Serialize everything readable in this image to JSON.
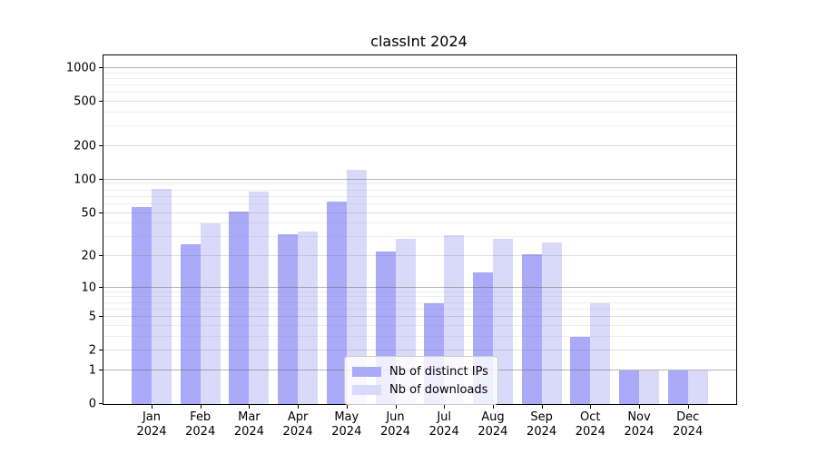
{
  "title": "classInt 2024",
  "chart_data": {
    "type": "bar",
    "title": "classInt 2024",
    "xlabel": "",
    "ylabel": "",
    "scale": "log1p",
    "ylim": [
      0,
      1300
    ],
    "grid": "on",
    "legend_position": "lower-center-inside",
    "categories": [
      "Jan",
      "Feb",
      "Mar",
      "Apr",
      "May",
      "Jun",
      "Jul",
      "Aug",
      "Sep",
      "Oct",
      "Nov",
      "Dec"
    ],
    "x_year_line": "2024",
    "series": [
      {
        "name": "Nb of distinct IPs",
        "color": "#aaaaf8",
        "values": [
          57,
          26,
          51,
          32,
          64,
          22,
          7,
          14,
          21,
          3,
          1,
          1
        ]
      },
      {
        "name": "Nb of downloads",
        "color": "#d9d9fa",
        "values": [
          83,
          40,
          78,
          34,
          122,
          29,
          31,
          29,
          27,
          7,
          1,
          1
        ]
      }
    ],
    "y_ticks": [
      0,
      1,
      2,
      5,
      10,
      20,
      50,
      100,
      200,
      500,
      1000
    ],
    "gridlines_major": [
      1,
      10,
      100,
      1000
    ],
    "gridlines_mid": [
      2,
      5,
      20,
      50,
      200,
      500
    ],
    "gridlines_minor": [
      3,
      4,
      6,
      7,
      8,
      9,
      30,
      40,
      60,
      70,
      80,
      90,
      300,
      400,
      600,
      700,
      800,
      900
    ]
  },
  "colors": {
    "ips_bar": "#aaaaf8",
    "downloads_bar": "#d9d9fa",
    "axis": "#000000",
    "background": "#ffffff"
  },
  "legend": {
    "items": [
      {
        "label": "Nb of distinct IPs",
        "color": "#aaaaf8"
      },
      {
        "label": "Nb of downloads",
        "color": "#d9d9fa"
      }
    ]
  }
}
